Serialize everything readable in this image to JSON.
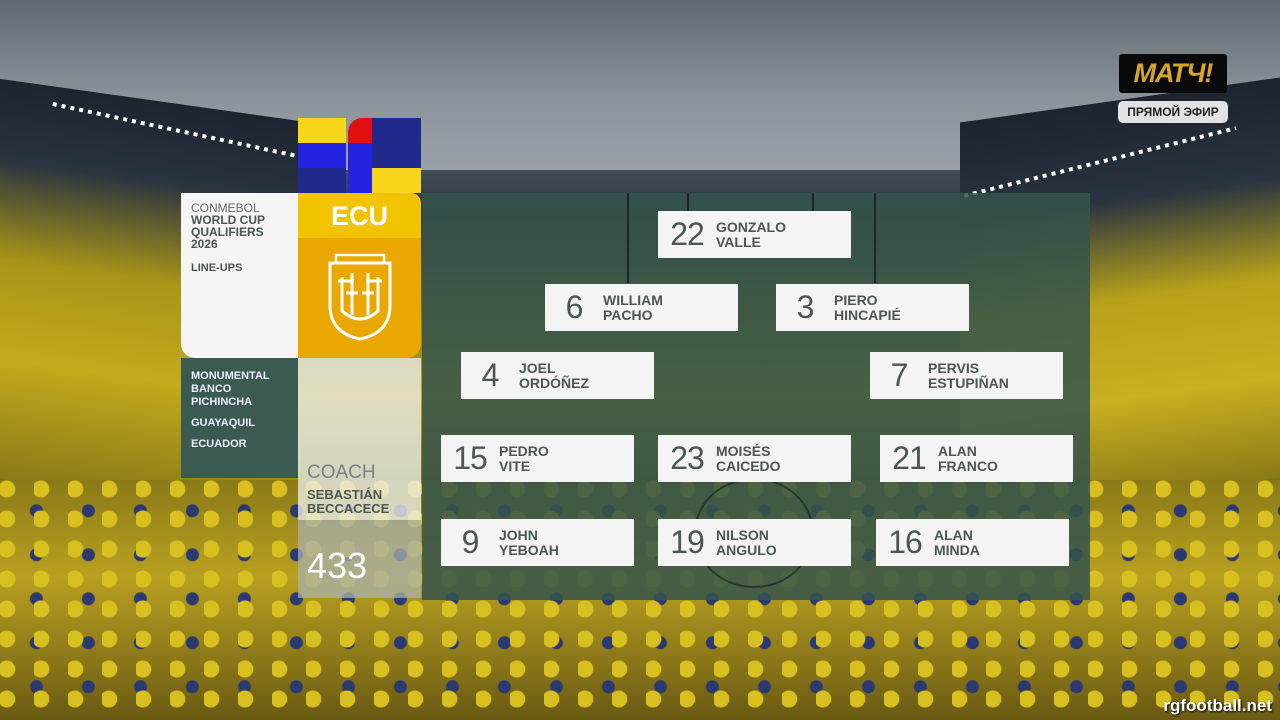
{
  "broadcaster": {
    "logo_text": "МАТЧ!",
    "live_label": "ПРЯМОЙ ЭФИР"
  },
  "watermark": "rgfootball.net",
  "competition": {
    "org": "CONMEBOL",
    "title": "WORLD CUP QUALIFIERS 2026",
    "section": "LINE-UPS"
  },
  "venue": {
    "stadium": "MONUMENTAL BANCO PICHINCHA",
    "city": "GUAYAQUIL",
    "country": "ECUADOR"
  },
  "team": {
    "code": "ECU",
    "colors": {
      "yellow": "#f2c400",
      "blue": "#1f2a8c",
      "red": "#e01010",
      "crest_bg": "#e9a700"
    }
  },
  "coach": {
    "label": "COACH",
    "first": "SEBASTIÁN",
    "last": "BECCACECE"
  },
  "formation": "433",
  "players": [
    {
      "number": "22",
      "first": "GONZALO",
      "last": "VALLE"
    },
    {
      "number": "6",
      "first": "WILLIAM",
      "last": "PACHO"
    },
    {
      "number": "3",
      "first": "PIERO",
      "last": "HINCAPIÉ"
    },
    {
      "number": "4",
      "first": "JOEL",
      "last": "ORDÓÑEZ"
    },
    {
      "number": "7",
      "first": "PERVIS",
      "last": "ESTUPIÑAN"
    },
    {
      "number": "15",
      "first": "PEDRO",
      "last": "VITE"
    },
    {
      "number": "23",
      "first": "MOISÉS",
      "last": "CAICEDO"
    },
    {
      "number": "21",
      "first": "ALAN",
      "last": "FRANCO"
    },
    {
      "number": "9",
      "first": "JOHN",
      "last": "YEBOAH"
    },
    {
      "number": "19",
      "first": "NILSON",
      "last": "ANGULO"
    },
    {
      "number": "16",
      "first": "ALAN",
      "last": "MINDA"
    }
  ]
}
